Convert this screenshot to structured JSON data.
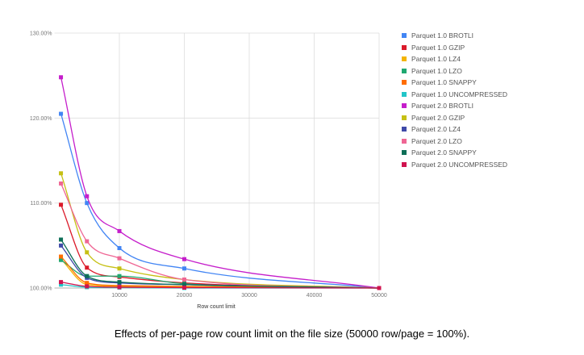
{
  "chart_data": {
    "type": "line",
    "title": "",
    "xlabel": "Row count limit",
    "ylabel": "",
    "caption": "Effects of per-page row count limit on the file size (50000 row/page = 100%).",
    "x": [
      1000,
      5000,
      10000,
      20000,
      50000
    ],
    "xlim": [
      0,
      50000
    ],
    "ylim": [
      100,
      130
    ],
    "x_ticks": [
      "10000",
      "20000",
      "30000",
      "40000",
      "50000"
    ],
    "y_ticks": [
      "100.00%",
      "110.00%",
      "120.00%",
      "130.00%"
    ],
    "grid": true,
    "legend_placement": "right",
    "series": [
      {
        "name": "Parquet 1.0 BROTLI",
        "color": "#4285f4",
        "values": [
          120.5,
          110.0,
          104.7,
          102.3,
          100.0
        ]
      },
      {
        "name": "Parquet 1.0 GZIP",
        "color": "#db1a2a",
        "values": [
          109.8,
          102.4,
          101.3,
          100.6,
          100.0
        ]
      },
      {
        "name": "Parquet 1.0 LZ4",
        "color": "#f4b400",
        "values": [
          103.4,
          100.4,
          100.2,
          100.1,
          100.0
        ]
      },
      {
        "name": "Parquet 1.0 LZO",
        "color": "#1fa870",
        "values": [
          103.3,
          101.4,
          101.4,
          100.5,
          100.0
        ]
      },
      {
        "name": "Parquet 1.0 SNAPPY",
        "color": "#ff6d00",
        "values": [
          103.7,
          100.6,
          100.3,
          100.2,
          100.0
        ]
      },
      {
        "name": "Parquet 1.0 UNCOMPRESSED",
        "color": "#22c5c8",
        "values": [
          100.4,
          100.1,
          100.05,
          100.0,
          100.0
        ]
      },
      {
        "name": "Parquet 2.0 BROTLI",
        "color": "#c51ecb",
        "values": [
          124.8,
          110.8,
          106.7,
          103.4,
          100.0
        ]
      },
      {
        "name": "Parquet 2.0 GZIP",
        "color": "#c6c014",
        "values": [
          113.5,
          104.2,
          102.3,
          101.0,
          100.0
        ]
      },
      {
        "name": "Parquet 2.0 LZ4",
        "color": "#3f4aa8",
        "values": [
          105.0,
          101.2,
          100.6,
          100.4,
          100.0
        ]
      },
      {
        "name": "Parquet 2.0 LZO",
        "color": "#ef6694",
        "values": [
          112.3,
          105.5,
          103.5,
          101.0,
          100.0
        ]
      },
      {
        "name": "Parquet 2.0 SNAPPY",
        "color": "#0d6e57",
        "values": [
          105.7,
          101.4,
          100.7,
          100.4,
          100.0
        ]
      },
      {
        "name": "Parquet 2.0 UNCOMPRESSED",
        "color": "#d0134f",
        "values": [
          100.7,
          100.2,
          100.1,
          100.05,
          100.0
        ]
      }
    ]
  }
}
